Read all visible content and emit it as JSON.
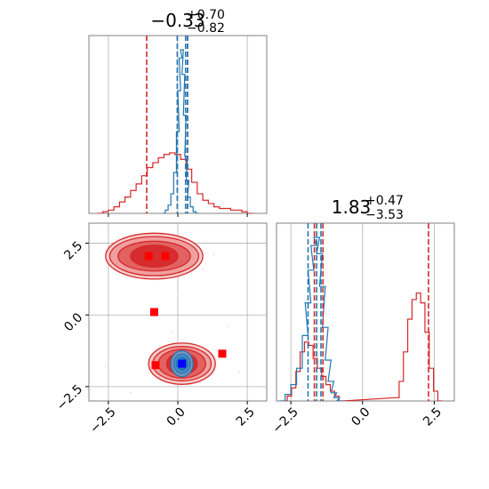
{
  "chart_data": [
    {
      "type": "line",
      "panel": "marginal-1",
      "title": {
        "base": "−0.33",
        "sup": "+0.70",
        "sub": "−0.82"
      },
      "x_range": [
        -3.2,
        3.2
      ],
      "grid": true,
      "series": [
        {
          "color": "#d62728",
          "bins_x": [
            -2.8,
            -2.6,
            -2.4,
            -2.2,
            -2.0,
            -1.8,
            -1.6,
            -1.4,
            -1.2,
            -1.0,
            -0.8,
            -0.6,
            -0.4,
            -0.2,
            0.0,
            0.2,
            0.4,
            0.6,
            0.8,
            1.0,
            1.2,
            1.4,
            1.6,
            1.8,
            2.0,
            2.2,
            2.4,
            2.6
          ],
          "density": [
            0.0,
            0.01,
            0.02,
            0.04,
            0.07,
            0.1,
            0.14,
            0.18,
            0.23,
            0.28,
            0.31,
            0.34,
            0.36,
            0.37,
            0.36,
            0.33,
            0.27,
            0.19,
            0.12,
            0.08,
            0.06,
            0.04,
            0.03,
            0.03,
            0.02,
            0.02,
            0.01,
            0.0
          ]
        },
        {
          "color": "#1f77b4",
          "bins_x": [
            -0.5,
            -0.4,
            -0.3,
            -0.2,
            -0.1,
            0.0,
            0.05,
            0.1,
            0.15,
            0.2,
            0.25,
            0.3,
            0.35,
            0.4,
            0.5,
            0.6,
            0.7
          ],
          "density": [
            0.0,
            0.02,
            0.05,
            0.12,
            0.25,
            0.5,
            0.75,
            0.95,
            1.0,
            0.85,
            0.6,
            0.35,
            0.2,
            0.1,
            0.04,
            0.01,
            0.0
          ]
        }
      ],
      "vlines": [
        {
          "x": -1.12,
          "color": "#d62728"
        },
        {
          "x": -0.02,
          "color": "#1f77b4"
        },
        {
          "x": 0.28,
          "color": "#1f77b4"
        },
        {
          "x": 0.35,
          "color": "#d62728"
        },
        {
          "x": 0.35,
          "color": "#1f77b4"
        }
      ]
    },
    {
      "type": "scatter",
      "panel": "joint",
      "x_range": [
        -3.2,
        3.2
      ],
      "y_range": [
        -3.0,
        3.2
      ],
      "xticks": [
        "−2.5",
        "0.0",
        "2.5"
      ],
      "xtick_values": [
        -2.5,
        0.0,
        2.5
      ],
      "yticks": [
        "−2.5",
        "0.0",
        "2.5"
      ],
      "ytick_values": [
        -2.5,
        0.0,
        2.5
      ],
      "grid": true,
      "contours": [
        {
          "color": "#d62728",
          "cx": -0.85,
          "cy": 2.05,
          "levels": [
            [
              1.75,
              0.8
            ],
            [
              1.6,
              0.68
            ],
            [
              1.3,
              0.52
            ],
            [
              0.85,
              0.38
            ]
          ]
        },
        {
          "color": "#d62728",
          "cx": 0.15,
          "cy": -1.7,
          "levels": [
            [
              1.2,
              0.72
            ],
            [
              1.05,
              0.6
            ],
            [
              0.85,
              0.5
            ],
            [
              0.55,
              0.38
            ]
          ]
        },
        {
          "color": "#1f77b4",
          "cx": 0.15,
          "cy": -1.7,
          "levels": [
            [
              0.4,
              0.45
            ],
            [
              0.3,
              0.34
            ],
            [
              0.2,
              0.22
            ]
          ]
        }
      ],
      "markers": [
        {
          "x": -1.05,
          "y": 2.05,
          "color": "#ff0000"
        },
        {
          "x": -0.45,
          "y": 2.05,
          "color": "#ff0000"
        },
        {
          "x": -0.85,
          "y": 0.1,
          "color": "#ff0000"
        },
        {
          "x": -0.8,
          "y": -1.75,
          "color": "#ff0000"
        },
        {
          "x": 1.6,
          "y": -1.35,
          "color": "#ff0000"
        },
        {
          "x": 0.15,
          "y": -1.7,
          "color": "#0000ff"
        }
      ]
    },
    {
      "type": "line",
      "panel": "marginal-2",
      "title": {
        "base": "1.83",
        "sup": "+0.47",
        "sub": "−3.53"
      },
      "x_range": [
        -3.0,
        3.2
      ],
      "xticks": [
        "−2.5",
        "0.0",
        "2.5"
      ],
      "xtick_values": [
        -2.5,
        0.0,
        2.5
      ],
      "grid": true,
      "series": [
        {
          "color": "#d62728",
          "bins_x": [
            -2.7,
            -2.55,
            -2.4,
            -2.25,
            -2.1,
            -1.95,
            -1.8,
            -1.65,
            -1.5,
            -1.35,
            -1.2,
            -1.05,
            -0.9,
            -0.75,
            1.2,
            1.35,
            1.5,
            1.65,
            1.8,
            1.95,
            2.1,
            2.25,
            2.4,
            2.55,
            2.7
          ],
          "density": [
            0.0,
            0.03,
            0.08,
            0.18,
            0.3,
            0.36,
            0.34,
            0.26,
            0.2,
            0.15,
            0.1,
            0.06,
            0.03,
            0.0,
            0.02,
            0.12,
            0.3,
            0.5,
            0.62,
            0.66,
            0.6,
            0.42,
            0.2,
            0.06,
            0.0
          ]
        },
        {
          "color": "#1f77b4",
          "bins_x": [
            -2.8,
            -2.6,
            -2.4,
            -2.2,
            -2.0,
            -1.9,
            -1.8,
            -1.7,
            -1.6,
            -1.5,
            -1.4,
            -1.3,
            -1.2,
            -1.1,
            -1.0,
            -0.9,
            -0.8
          ],
          "density": [
            0.0,
            0.04,
            0.1,
            0.2,
            0.4,
            0.6,
            0.8,
            0.95,
            1.0,
            0.9,
            0.7,
            0.45,
            0.25,
            0.12,
            0.05,
            0.02,
            0.0
          ]
        }
      ],
      "vlines": [
        {
          "x": -1.9,
          "color": "#1f77b4"
        },
        {
          "x": -1.68,
          "color": "#d62728"
        },
        {
          "x": -1.6,
          "color": "#1f77b4"
        },
        {
          "x": -1.45,
          "color": "#1f77b4"
        },
        {
          "x": -1.38,
          "color": "#d62728"
        },
        {
          "x": 2.3,
          "color": "#d62728"
        }
      ]
    }
  ]
}
